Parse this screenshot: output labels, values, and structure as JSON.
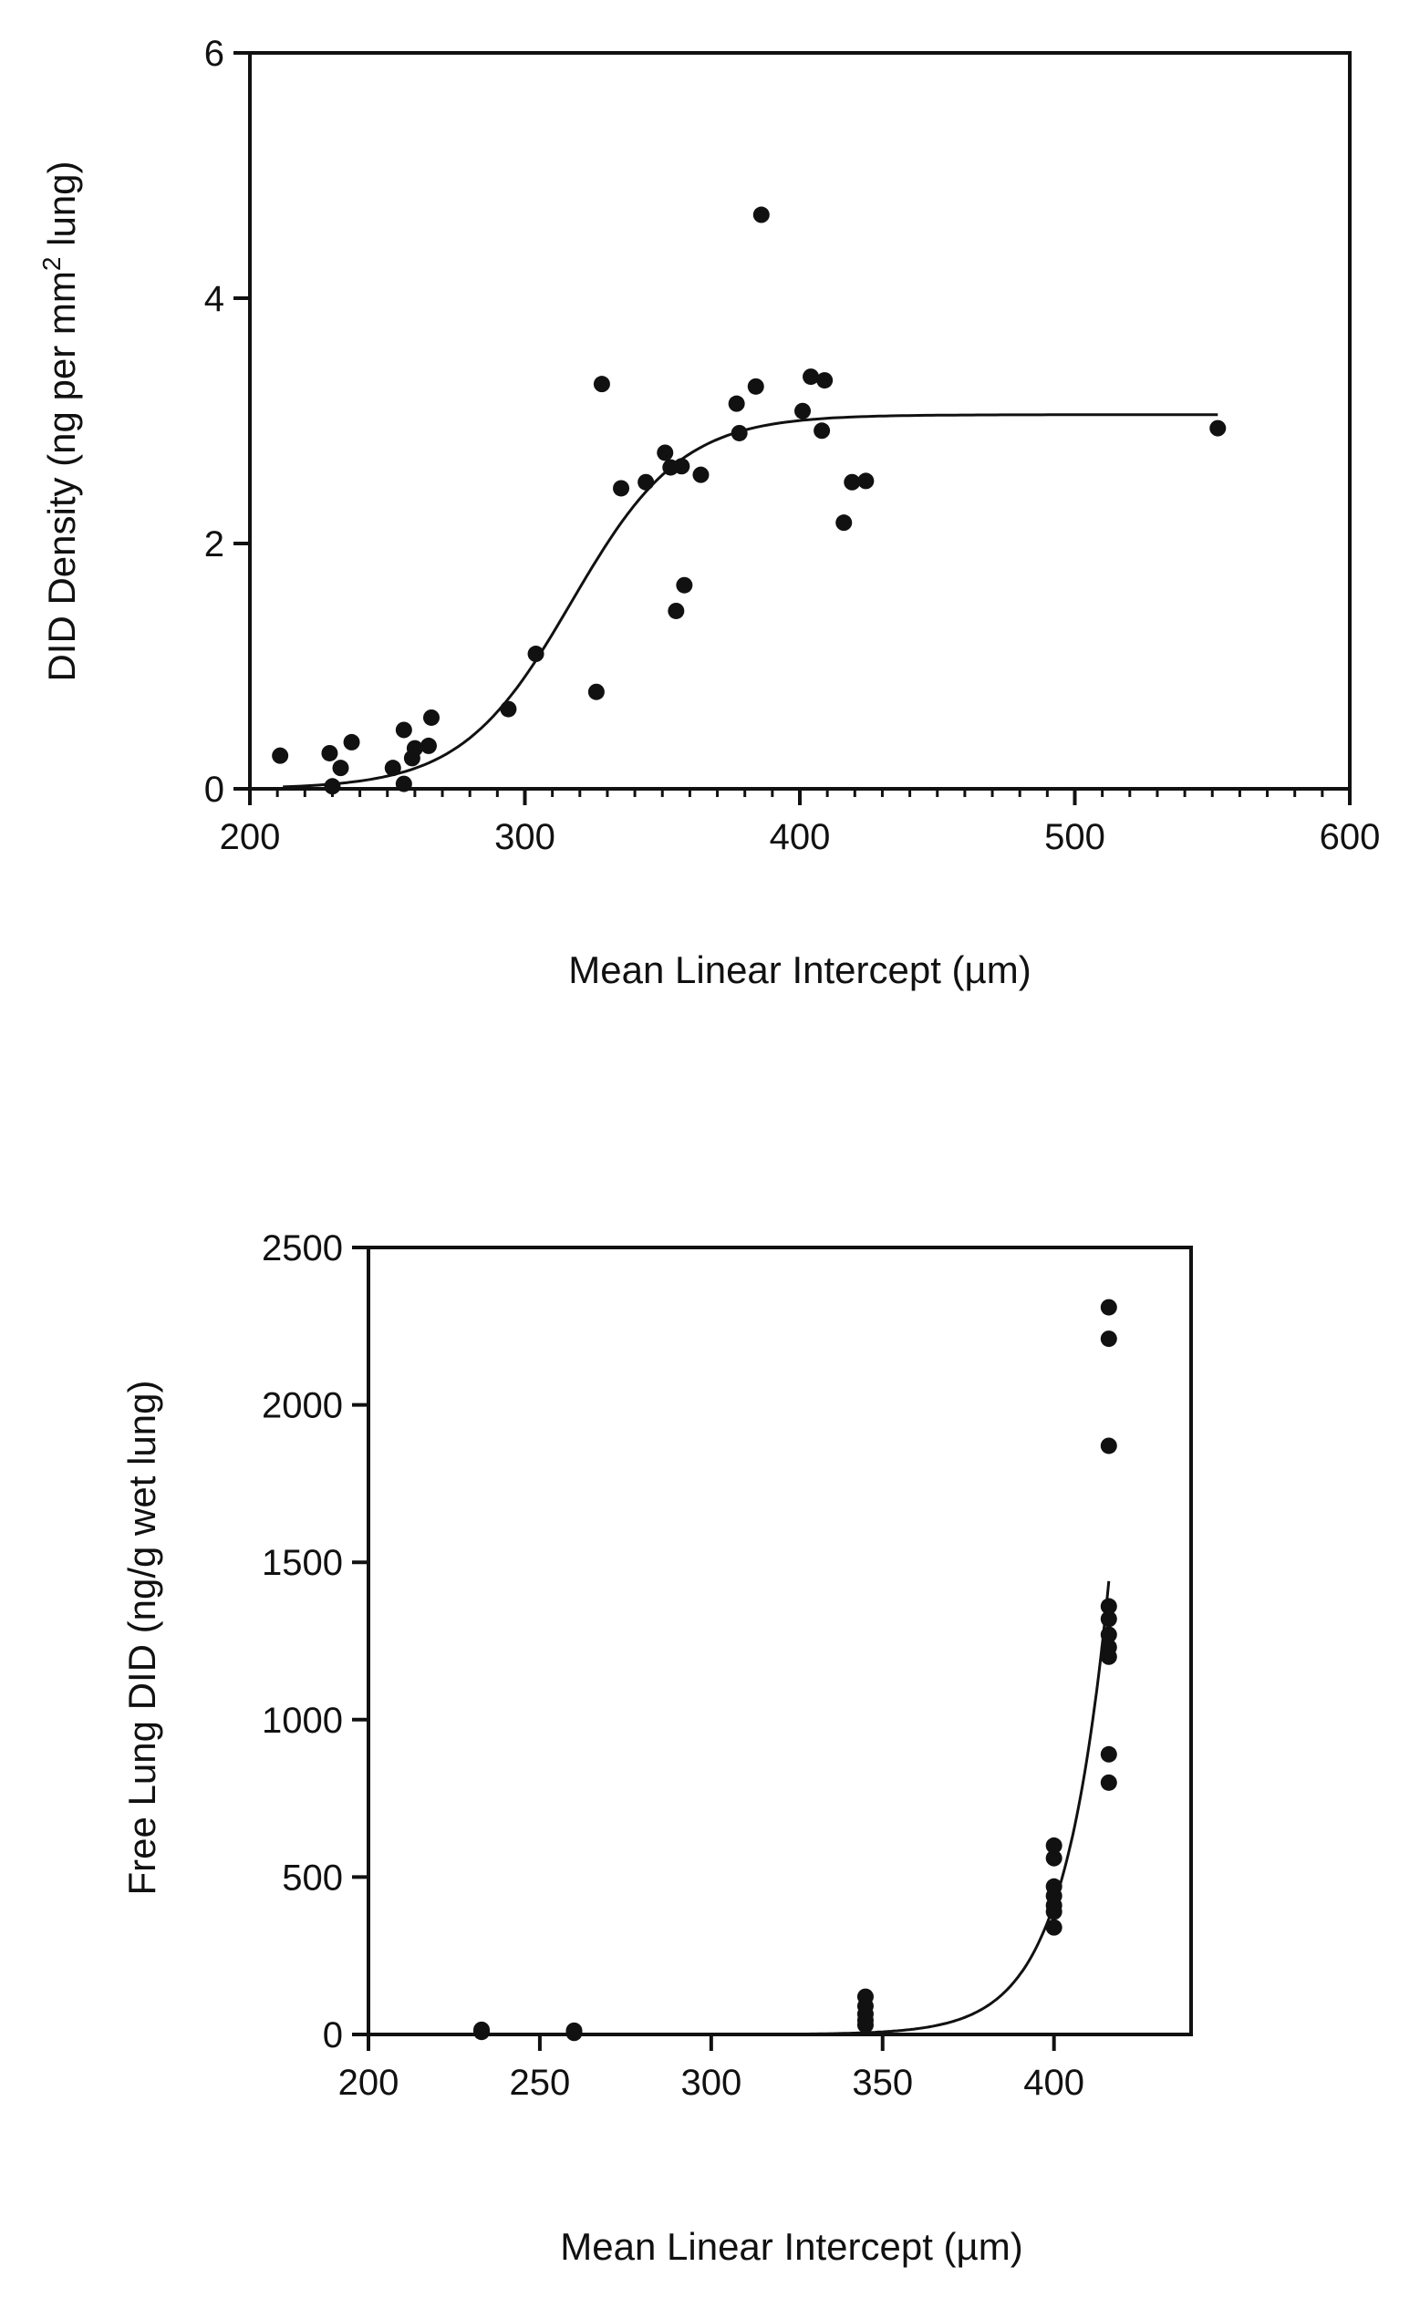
{
  "chart_data": [
    {
      "type": "scatter",
      "xlabel": "Mean Linear Intercept (µm)",
      "ylabel_main": "DID Density (ng per mm",
      "ylabel_sup": "2",
      "ylabel_tail": " lung)",
      "xlim": [
        200,
        600
      ],
      "ylim": [
        0,
        6
      ],
      "xticks": [
        "200",
        "300",
        "400",
        "500",
        "600"
      ],
      "yticks": [
        "0",
        "2",
        "4",
        "6"
      ],
      "xtick_values": [
        200,
        300,
        400,
        500,
        600
      ],
      "ytick_values": [
        0,
        2,
        4,
        6
      ],
      "grid": false,
      "points": [
        [
          211,
          0.27
        ],
        [
          229,
          0.29
        ],
        [
          230,
          0.02
        ],
        [
          233,
          0.17
        ],
        [
          237,
          0.38
        ],
        [
          252,
          0.17
        ],
        [
          256,
          0.04
        ],
        [
          256,
          0.48
        ],
        [
          259,
          0.25
        ],
        [
          260,
          0.33
        ],
        [
          265,
          0.35
        ],
        [
          266,
          0.58
        ],
        [
          294,
          0.65
        ],
        [
          304,
          1.1
        ],
        [
          326,
          0.79
        ],
        [
          328,
          3.3
        ],
        [
          335,
          2.45
        ],
        [
          344,
          2.5
        ],
        [
          351,
          2.74
        ],
        [
          353,
          2.62
        ],
        [
          355,
          1.45
        ],
        [
          357,
          2.63
        ],
        [
          358,
          1.66
        ],
        [
          364,
          2.56
        ],
        [
          377,
          3.14
        ],
        [
          378,
          2.9
        ],
        [
          384,
          3.28
        ],
        [
          386,
          4.68
        ],
        [
          401,
          3.08
        ],
        [
          404,
          3.36
        ],
        [
          408,
          2.92
        ],
        [
          409,
          3.33
        ],
        [
          416,
          2.17
        ],
        [
          419,
          2.5
        ],
        [
          424,
          2.51
        ],
        [
          552,
          2.94
        ]
      ],
      "fit": {
        "type": "sigmoid",
        "bottom": 0.0,
        "top": 3.05,
        "x50": 317,
        "slope": 20,
        "x_range": [
          212,
          552
        ]
      }
    },
    {
      "type": "scatter",
      "xlabel": "Mean Linear Intercept (µm)",
      "ylabel": "Free Lung DID (ng/g wet lung)",
      "xlim": [
        200,
        440
      ],
      "ylim": [
        0,
        2500
      ],
      "xticks": [
        "200",
        "250",
        "300",
        "350",
        "400"
      ],
      "yticks": [
        "0",
        "500",
        "1000",
        "1500",
        "2000",
        "2500"
      ],
      "xtick_values": [
        200,
        250,
        300,
        350,
        400
      ],
      "ytick_values": [
        0,
        500,
        1000,
        1500,
        2000,
        2500
      ],
      "grid": false,
      "points": [
        [
          233,
          15
        ],
        [
          233,
          8
        ],
        [
          260,
          12
        ],
        [
          260,
          5
        ],
        [
          345,
          120
        ],
        [
          345,
          90
        ],
        [
          345,
          65
        ],
        [
          345,
          45
        ],
        [
          345,
          30
        ],
        [
          400,
          600
        ],
        [
          400,
          560
        ],
        [
          400,
          470
        ],
        [
          400,
          440
        ],
        [
          400,
          410
        ],
        [
          400,
          390
        ],
        [
          400,
          340
        ],
        [
          416,
          2310
        ],
        [
          416,
          2210
        ],
        [
          416,
          1870
        ],
        [
          416,
          1360
        ],
        [
          416,
          1320
        ],
        [
          416,
          1270
        ],
        [
          416,
          1230
        ],
        [
          416,
          1200
        ],
        [
          416,
          890
        ],
        [
          416,
          800
        ]
      ],
      "fit": {
        "type": "exponential",
        "a": 1440,
        "b": 0.078,
        "x_ref": 416,
        "x_range": [
          322,
          416
        ]
      }
    }
  ]
}
